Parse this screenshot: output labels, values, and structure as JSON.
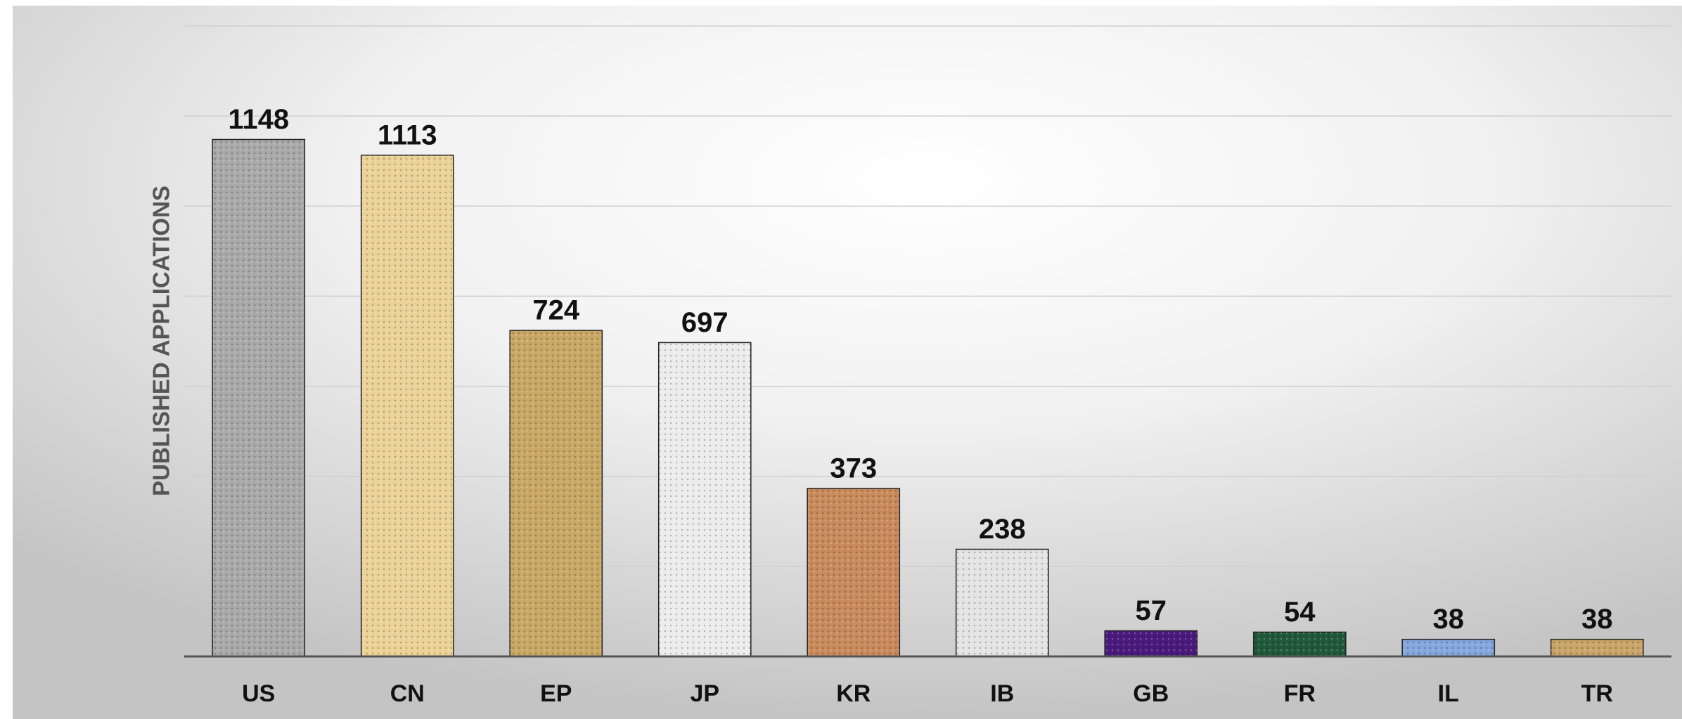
{
  "chart_data": {
    "type": "bar",
    "y_label": "PUBLISHED APPLICATIONS",
    "categories": [
      "US",
      "CN",
      "EP",
      "JP",
      "KR",
      "IB",
      "GB",
      "FR",
      "IL",
      "TR"
    ],
    "values": [
      1148,
      1113,
      724,
      697,
      373,
      238,
      57,
      54,
      38,
      38
    ],
    "colors": [
      "#a9a9a9",
      "#ebd296",
      "#c9a765",
      "#ececec",
      "#c98a5c",
      "#e4e4e4",
      "#4a1b7c",
      "#21593b",
      "#84a6dc",
      "#c8a468"
    ],
    "ylim": [
      0,
      1400
    ],
    "yticks": [
      0,
      200,
      400,
      600,
      800,
      1000,
      1200,
      1400
    ],
    "grid": true
  }
}
